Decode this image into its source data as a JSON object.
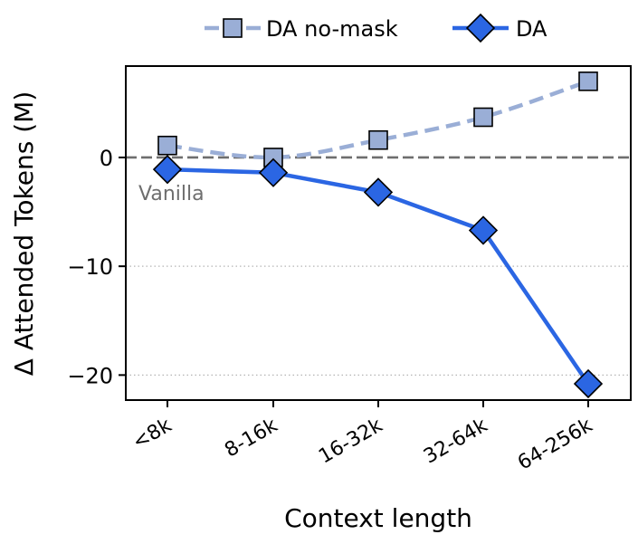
{
  "chart_data": {
    "type": "line",
    "title": "",
    "xlabel": "Context length",
    "ylabel": "Δ Attended Tokens (M)",
    "categories": [
      "<8k",
      "8-16k",
      "16-32k",
      "32-64k",
      "64-256k"
    ],
    "yticks": [
      0,
      -10,
      -20
    ],
    "ytick_labels": [
      "0",
      "−10",
      "−20"
    ],
    "ylim": [
      -22.3,
      8.4
    ],
    "grid": "horizontal dotted at -10 and -20",
    "legend_position": "top-center",
    "series": [
      {
        "name": "DA no-mask",
        "values": [
          1.1,
          0.0,
          1.6,
          3.7,
          7.0
        ],
        "color": "#9aaed6",
        "line_style": "dashed",
        "marker": "square"
      },
      {
        "name": "DA",
        "values": [
          -1.1,
          -1.4,
          -3.2,
          -6.7,
          -20.8
        ],
        "color": "#2b66e3",
        "line_style": "solid",
        "marker": "diamond"
      }
    ],
    "reference_line": {
      "value": 0,
      "label": "Vanilla",
      "color": "#6e6e6e",
      "line_style": "dashed"
    }
  }
}
